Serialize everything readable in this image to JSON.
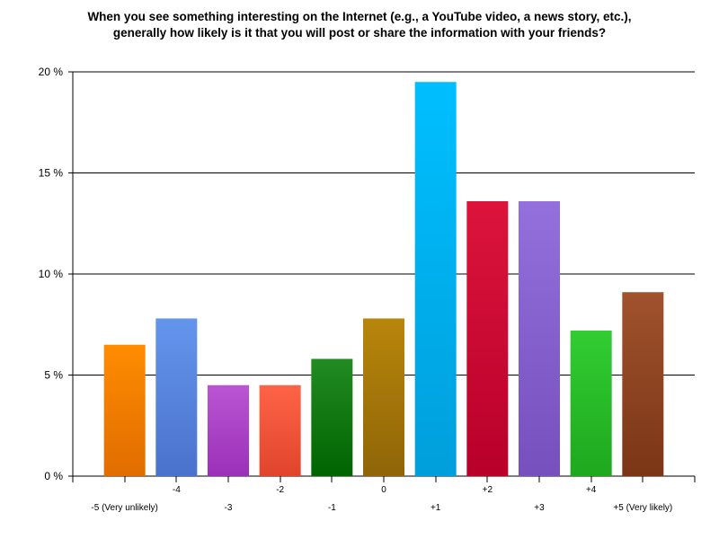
{
  "chart_data": {
    "type": "bar",
    "title_line1": "When you see something interesting on the Internet (e.g., a YouTube video, a news story, etc.),",
    "title_line2": "generally how likely is it that you will post or share the information with your friends?",
    "categories": [
      "-5 (Very unlikely)",
      "-4",
      "-3",
      "-2",
      "-1",
      "0",
      "+1",
      "+2",
      "+3",
      "+4",
      "+5 (Very likely)"
    ],
    "values": [
      6.5,
      7.8,
      4.5,
      4.5,
      5.8,
      7.8,
      19.5,
      13.6,
      13.6,
      7.2,
      9.1
    ],
    "colors": [
      [
        "#ff8c00",
        "#e06d00"
      ],
      [
        "#6495ed",
        "#4a72cc"
      ],
      [
        "#ba55d3",
        "#9b30b8"
      ],
      [
        "#ff6347",
        "#e0442c"
      ],
      [
        "#228b22",
        "#006400"
      ],
      [
        "#b8860b",
        "#8f6508"
      ],
      [
        "#00bfff",
        "#009fdb"
      ],
      [
        "#dc143c",
        "#b8002a"
      ],
      [
        "#9370db",
        "#7650bd"
      ],
      [
        "#32cd32",
        "#1ea81e"
      ],
      [
        "#a0522d",
        "#7a3616"
      ]
    ],
    "ylim": [
      0,
      20
    ],
    "yticks": [
      0,
      5,
      10,
      15,
      20
    ],
    "ytick_labels": [
      "0 %",
      "5 %",
      "10 %",
      "15 %",
      "20 %"
    ],
    "grid": true
  }
}
